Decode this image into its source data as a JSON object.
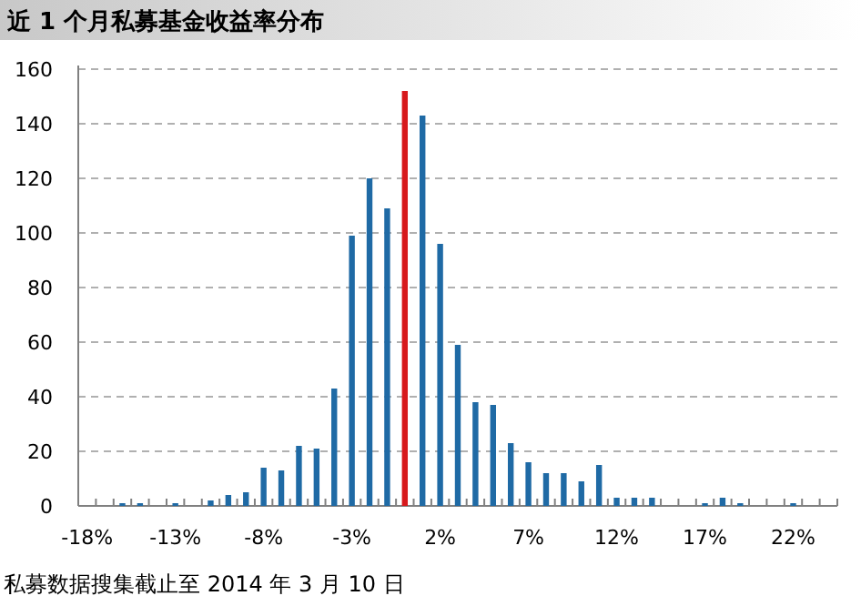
{
  "chart_data": {
    "type": "bar",
    "title": "近 1 个月私募基金收益率分布",
    "categories": [
      "-18%",
      null,
      null,
      null,
      null,
      "-13%",
      null,
      null,
      null,
      null,
      "-8%",
      null,
      null,
      null,
      null,
      "-3%",
      null,
      null,
      null,
      null,
      "2%",
      null,
      null,
      null,
      null,
      "7%",
      null,
      null,
      null,
      null,
      "12%",
      null,
      null,
      null,
      null,
      "17%",
      null,
      null,
      null,
      null,
      "22%",
      null,
      null
    ],
    "values": [
      0,
      0,
      1,
      1,
      0,
      1,
      0,
      2,
      4,
      5,
      14,
      13,
      22,
      21,
      43,
      99,
      120,
      109,
      152,
      143,
      96,
      59,
      38,
      37,
      23,
      16,
      12,
      12,
      9,
      15,
      3,
      3,
      3,
      0,
      0,
      1,
      3,
      1,
      0,
      0,
      1,
      0,
      0
    ],
    "colors": [
      "#1f6aa5",
      "#1f6aa5",
      "#1f6aa5",
      "#1f6aa5",
      "#1f6aa5",
      "#1f6aa5",
      "#1f6aa5",
      "#1f6aa5",
      "#1f6aa5",
      "#1f6aa5",
      "#1f6aa5",
      "#1f6aa5",
      "#1f6aa5",
      "#1f6aa5",
      "#1f6aa5",
      "#1f6aa5",
      "#1f6aa5",
      "#1f6aa5",
      "#d7191c",
      "#1f6aa5",
      "#1f6aa5",
      "#1f6aa5",
      "#1f6aa5",
      "#1f6aa5",
      "#1f6aa5",
      "#1f6aa5",
      "#1f6aa5",
      "#1f6aa5",
      "#1f6aa5",
      "#1f6aa5",
      "#1f6aa5",
      "#1f6aa5",
      "#1f6aa5",
      "#1f6aa5",
      "#1f6aa5",
      "#1f6aa5",
      "#1f6aa5",
      "#1f6aa5",
      "#1f6aa5",
      "#1f6aa5",
      "#1f6aa5",
      "#1f6aa5",
      "#1f6aa5"
    ],
    "ylim": [
      0,
      160
    ],
    "yticks": [
      0,
      20,
      40,
      60,
      80,
      100,
      120,
      140,
      160
    ],
    "grid": "y",
    "annotations": [
      "私募数据搜集截止至 2014 年 3 月 10 日"
    ]
  }
}
